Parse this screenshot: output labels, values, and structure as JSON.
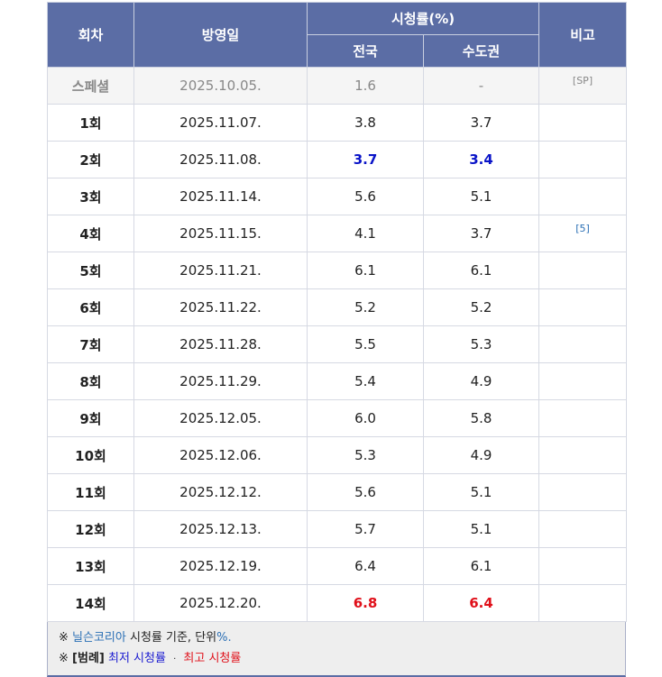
{
  "table": {
    "header": {
      "episode": "회차",
      "airdate": "방영일",
      "ratings": "시청률(%)",
      "nationwide": "전국",
      "capital": "수도권",
      "note": "비고"
    },
    "rows": [
      [
        "스페셜",
        "2025.10.05.",
        "1.6",
        "-",
        "[SP]"
      ],
      [
        "1회",
        "2025.11.07.",
        "3.8",
        "3.7"
      ],
      [
        "2회",
        "2025.11.08.",
        "3.7",
        "3.4"
      ],
      [
        "3회",
        "2025.11.14.",
        "5.6",
        "5.1"
      ],
      [
        "4회",
        "2025.11.15.",
        "4.1",
        "3.7",
        "[5]"
      ],
      [
        "5회",
        "2025.11.21.",
        "6.1",
        "6.1"
      ],
      [
        "6회",
        "2025.11.22.",
        "5.2",
        "5.2"
      ],
      [
        "7회",
        "2025.11.28.",
        "5.5",
        "5.3"
      ],
      [
        "8회",
        "2025.11.29.",
        "5.4",
        "4.9"
      ],
      [
        "9회",
        "2025.12.05.",
        "6.0",
        "5.8"
      ],
      [
        "10회",
        "2025.12.06.",
        "5.3",
        "4.9"
      ],
      [
        "11회",
        "2025.12.12.",
        "5.6",
        "5.1"
      ],
      [
        "12회",
        "2025.12.13.",
        "5.7",
        "5.1"
      ],
      [
        "13회",
        "2025.12.19.",
        "6.4",
        "6.1"
      ],
      [
        "14회",
        "2025.12.20.",
        "6.8",
        "6.4"
      ]
    ],
    "footnotes": [
      [
        "※",
        "닐슨코리아",
        "시청률 기준, 단위",
        "%."
      ],
      [
        "※",
        "[범례]",
        "최저 시청률",
        "·",
        "최고 시청률"
      ]
    ]
  }
}
